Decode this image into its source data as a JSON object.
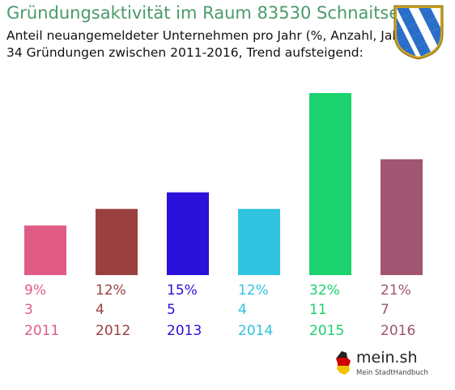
{
  "header": {
    "title": "Gründungsaktivität im Raum 83530 Schnaitsee",
    "subtitle_1": "Anteil neuangemeldeter Unternehmen pro Jahr (%, Anzahl, Jahr)",
    "subtitle_2": "34 Gründungen zwischen 2011-2016, Trend aufsteigend:"
  },
  "crest": {
    "icon": "bavaria-coat-of-arms-icon",
    "colors": {
      "blue": "#2a6ec9",
      "white": "#ffffff",
      "gold": "#c8a020"
    }
  },
  "brand": {
    "name": "mein.sh",
    "tagline": "Mein StadtHandbuch",
    "icon": "germany-map-icon"
  },
  "chart_data": {
    "type": "bar",
    "title": "Gründungsaktivität im Raum 83530 Schnaitsee",
    "categories": [
      "2011",
      "2012",
      "2013",
      "2014",
      "2015",
      "2016"
    ],
    "series": [
      {
        "values": [
          3,
          4,
          5,
          4,
          11,
          7
        ]
      }
    ],
    "percent_labels": [
      "9%",
      "12%",
      "15%",
      "12%",
      "32%",
      "21%"
    ],
    "count_labels": [
      "3",
      "4",
      "5",
      "4",
      "11",
      "7"
    ],
    "colors": [
      "#e05c85",
      "#9b4040",
      "#2a10d8",
      "#30c3e0",
      "#1ad26e",
      "#a05570"
    ],
    "ylim": [
      0,
      11
    ],
    "grid": false,
    "legend": "none"
  }
}
